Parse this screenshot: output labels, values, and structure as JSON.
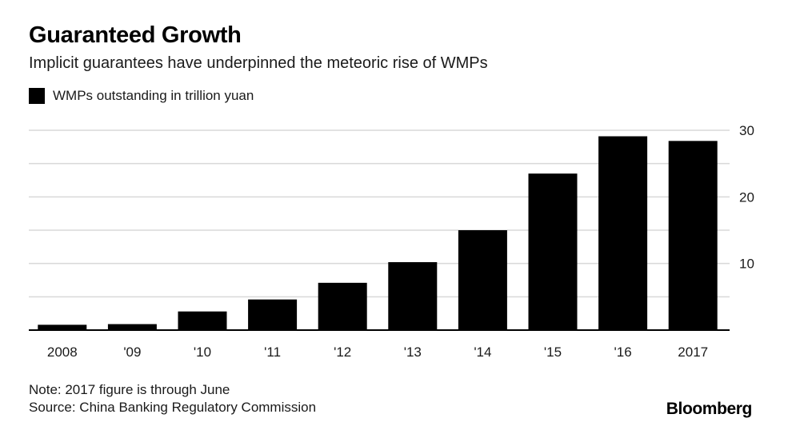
{
  "header": {
    "title": "Guaranteed Growth",
    "subtitle": "Implicit guarantees have underpinned the meteoric rise of WMPs"
  },
  "footer": {
    "note": "Note: 2017 figure is through June",
    "source": "Source: China Banking Regulatory Commission",
    "brand": "Bloomberg"
  },
  "colors": {
    "bar": "#000000",
    "grid": "#d9d9d9",
    "axis": "#000000",
    "text": "#1a1a1a"
  },
  "chart_data": {
    "type": "bar",
    "title": "Guaranteed Growth",
    "subtitle": "Implicit guarantees have underpinned the meteoric rise of WMPs",
    "categories": [
      "2008",
      "'09",
      "'10",
      "'11",
      "'12",
      "'13",
      "'14",
      "'15",
      "'16",
      "2017"
    ],
    "series": [
      {
        "name": "WMPs outstanding in trillion yuan",
        "values": [
          0.8,
          0.9,
          2.8,
          4.6,
          7.1,
          10.2,
          15.0,
          23.5,
          29.1,
          28.4
        ]
      }
    ],
    "xlabel": "",
    "ylabel": "",
    "ylim": [
      0,
      30
    ],
    "yticks": [
      10,
      20,
      30
    ],
    "grid_lines": [
      5,
      10,
      15,
      20,
      25,
      30
    ],
    "y_axis_side": "right",
    "grid": true,
    "legend": "top-left"
  }
}
